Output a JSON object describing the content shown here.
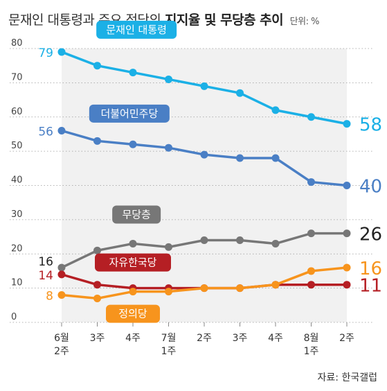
{
  "title": {
    "prefix": "문재인 대통령과 주요 정당의",
    "bold": "지지율 및 무당층 추이",
    "unit": "단위: %"
  },
  "source": "자료: 한국갤럽",
  "chart_data": {
    "type": "line",
    "categories": [
      [
        "6월",
        "2주"
      ],
      [
        "3주"
      ],
      [
        "4주"
      ],
      [
        "7월",
        "1주"
      ],
      [
        "2주"
      ],
      [
        "3주"
      ],
      [
        "4주"
      ],
      [
        "8월",
        "1주"
      ],
      [
        "2주"
      ]
    ],
    "ylim": [
      0,
      80
    ],
    "yticks": [
      0,
      10,
      20,
      30,
      40,
      50,
      60,
      70,
      80
    ],
    "series": [
      {
        "name": "문재인 대통령",
        "color": "#1bb0e6",
        "values": [
          79,
          75,
          73,
          71,
          69,
          67,
          62,
          60,
          58
        ],
        "start_label": "79",
        "end_label": "58"
      },
      {
        "name": "더불어민주당",
        "color": "#4a7fc5",
        "values": [
          56,
          53,
          52,
          51,
          49,
          48,
          48,
          41,
          40
        ],
        "start_label": "56",
        "end_label": "40"
      },
      {
        "name": "무당층",
        "color": "#777777",
        "values": [
          16,
          21,
          23,
          22,
          24,
          24,
          23,
          26,
          26
        ],
        "start_label": "16",
        "end_label": "26"
      },
      {
        "name": "자유한국당",
        "color": "#b51f24",
        "values": [
          14,
          11,
          10,
          10,
          10,
          10,
          11,
          11,
          11
        ],
        "start_label": "14",
        "end_label": "11"
      },
      {
        "name": "정의당",
        "color": "#f7941d",
        "values": [
          8,
          7,
          9,
          9,
          10,
          10,
          11,
          15,
          16
        ],
        "start_label": "8",
        "end_label": "16"
      }
    ]
  }
}
